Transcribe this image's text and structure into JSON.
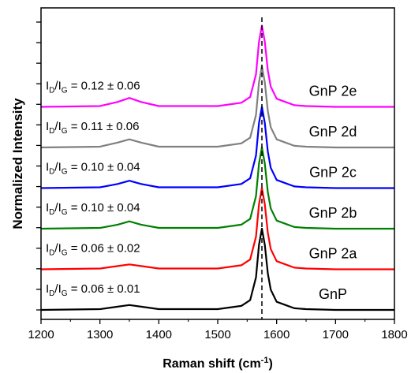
{
  "chart_data": {
    "type": "line",
    "title": "",
    "xlabel": "Raman shift (cm",
    "xlabel_sup": "-1",
    "xlabel_end": ")",
    "ylabel": "Normalized Intensity",
    "xlim": [
      1200,
      1800
    ],
    "x_ticks": [
      1200,
      1300,
      1400,
      1500,
      1600,
      1700,
      1800
    ],
    "reference_line_x": 1575,
    "grid": false,
    "legend": "labels placed on the right of each curve",
    "series": [
      {
        "name": "GnP",
        "color": "#000000",
        "ratio": "0.06 ± 0.01",
        "x": [
          1200,
          1300,
          1330,
          1350,
          1370,
          1400,
          1500,
          1540,
          1555,
          1565,
          1570,
          1575,
          1580,
          1585,
          1590,
          1600,
          1615,
          1630,
          1650,
          1700,
          1800
        ],
        "y": [
          0.0,
          0.01,
          0.04,
          0.06,
          0.04,
          0.01,
          0.01,
          0.05,
          0.12,
          0.4,
          0.8,
          1.0,
          0.8,
          0.45,
          0.25,
          0.1,
          0.06,
          0.02,
          0.01,
          0.0,
          0.0
        ]
      },
      {
        "name": "GnP 2a",
        "color": "#ff0000",
        "ratio": "0.06 ± 0.02",
        "x": [
          1200,
          1300,
          1330,
          1350,
          1370,
          1400,
          1500,
          1540,
          1555,
          1565,
          1570,
          1575,
          1580,
          1585,
          1590,
          1600,
          1615,
          1630,
          1650,
          1700,
          1800
        ],
        "y": [
          0.0,
          0.01,
          0.04,
          0.06,
          0.04,
          0.01,
          0.01,
          0.05,
          0.12,
          0.4,
          0.8,
          1.0,
          0.8,
          0.45,
          0.25,
          0.1,
          0.06,
          0.02,
          0.01,
          0.0,
          0.0
        ]
      },
      {
        "name": "GnP 2b",
        "color": "#008000",
        "ratio": "0.10 ± 0.04",
        "x": [
          1200,
          1300,
          1330,
          1350,
          1370,
          1400,
          1500,
          1540,
          1555,
          1565,
          1570,
          1575,
          1580,
          1585,
          1590,
          1600,
          1615,
          1630,
          1650,
          1700,
          1800
        ],
        "y": [
          0.0,
          0.01,
          0.05,
          0.09,
          0.05,
          0.01,
          0.01,
          0.05,
          0.12,
          0.4,
          0.8,
          1.0,
          0.8,
          0.45,
          0.25,
          0.1,
          0.06,
          0.02,
          0.01,
          0.0,
          0.0
        ]
      },
      {
        "name": "GnP 2c",
        "color": "#0000ff",
        "ratio": "0.10 ± 0.04",
        "x": [
          1200,
          1300,
          1330,
          1350,
          1370,
          1400,
          1500,
          1540,
          1555,
          1565,
          1570,
          1575,
          1580,
          1585,
          1590,
          1600,
          1615,
          1630,
          1650,
          1700,
          1800
        ],
        "y": [
          0.0,
          0.01,
          0.05,
          0.09,
          0.05,
          0.01,
          0.01,
          0.05,
          0.12,
          0.4,
          0.8,
          1.0,
          0.8,
          0.45,
          0.25,
          0.1,
          0.06,
          0.02,
          0.01,
          0.0,
          0.0
        ]
      },
      {
        "name": "GnP 2d",
        "color": "#808080",
        "ratio": "0.11 ± 0.06",
        "x": [
          1200,
          1300,
          1330,
          1350,
          1370,
          1400,
          1500,
          1540,
          1555,
          1565,
          1570,
          1575,
          1580,
          1585,
          1590,
          1600,
          1615,
          1630,
          1650,
          1700,
          1800
        ],
        "y": [
          0.0,
          0.01,
          0.06,
          0.1,
          0.06,
          0.01,
          0.01,
          0.05,
          0.12,
          0.4,
          0.8,
          1.0,
          0.8,
          0.45,
          0.25,
          0.1,
          0.06,
          0.02,
          0.01,
          0.0,
          0.0
        ]
      },
      {
        "name": "GnP 2e",
        "color": "#ff00ff",
        "ratio": "0.12 ± 0.06",
        "x": [
          1200,
          1300,
          1330,
          1350,
          1370,
          1400,
          1500,
          1540,
          1555,
          1565,
          1570,
          1575,
          1580,
          1585,
          1590,
          1600,
          1615,
          1630,
          1650,
          1700,
          1800
        ],
        "y": [
          0.0,
          0.01,
          0.06,
          0.11,
          0.06,
          0.01,
          0.01,
          0.05,
          0.12,
          0.4,
          0.8,
          1.0,
          0.8,
          0.45,
          0.25,
          0.1,
          0.06,
          0.02,
          0.01,
          0.0,
          0.0
        ]
      }
    ]
  }
}
